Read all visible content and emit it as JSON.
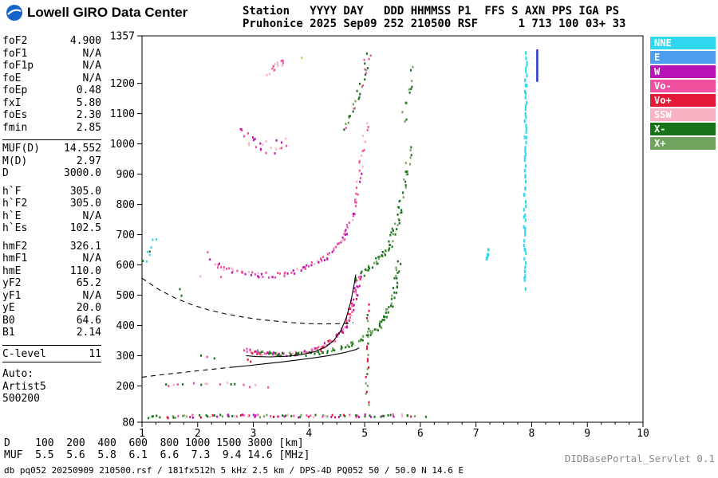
{
  "header": {
    "brand": "Lowell GIRO Data Center",
    "station_line1": "Station   YYYY DAY   DDD HHMMSS P1  FFS S AXN PPS IGA PS",
    "station_line2": "Pruhonice 2025 Sep09 252 210500 RSF      1 713 100 03+ 33"
  },
  "params": {
    "groups": [
      {
        "rule_top": false,
        "rule_bottom": false,
        "rows": [
          [
            "foF2",
            "4.900"
          ],
          [
            "foF1",
            "N/A"
          ],
          [
            "foF1p",
            "N/A"
          ],
          [
            "foE",
            "N/A"
          ],
          [
            "foEp",
            "0.48"
          ],
          [
            "fxI",
            "5.80"
          ],
          [
            "foEs",
            "2.30"
          ],
          [
            "fmin",
            "2.85"
          ]
        ]
      },
      {
        "rule_top": true,
        "rule_bottom": false,
        "rows": [
          [
            "MUF(D)",
            "14.552"
          ],
          [
            "M(D)",
            "2.97"
          ],
          [
            "D",
            "3000.0"
          ]
        ]
      },
      {
        "rule_top": false,
        "rule_bottom": false,
        "rows": [
          [
            "h`F",
            "305.0"
          ],
          [
            "h`F2",
            "305.0"
          ],
          [
            "h`E",
            "N/A"
          ],
          [
            "h`Es",
            "102.5"
          ]
        ]
      },
      {
        "rule_top": false,
        "rule_bottom": false,
        "rows": [
          [
            "hmF2",
            "326.1"
          ],
          [
            "hmF1",
            "N/A"
          ],
          [
            "hmE",
            "110.0"
          ],
          [
            "yF2",
            "65.2"
          ],
          [
            "yF1",
            "N/A"
          ],
          [
            "yE",
            "20.0"
          ],
          [
            "B0",
            "64.6"
          ],
          [
            "B1",
            "2.14"
          ]
        ]
      },
      {
        "rule_top": true,
        "rule_bottom": true,
        "rows": [
          [
            "C-level",
            "11"
          ]
        ]
      },
      {
        "rule_top": false,
        "rule_bottom": false,
        "rows": [
          [
            "Auto:",
            ""
          ],
          [
            "Artist5",
            ""
          ],
          [
            "500200",
            ""
          ]
        ]
      }
    ]
  },
  "legend": {
    "items": [
      {
        "label": "NNE",
        "color_key": "NNE"
      },
      {
        "label": "E",
        "color_key": "E"
      },
      {
        "label": "W",
        "color_key": "W"
      },
      {
        "label": "Vo-",
        "color_key": "Vo-"
      },
      {
        "label": "Vo+",
        "color_key": "Vo+"
      },
      {
        "label": "SSW",
        "color_key": "SSW"
      },
      {
        "label": "X-",
        "color_key": "X-"
      },
      {
        "label": "X+",
        "color_key": "X+"
      }
    ]
  },
  "footer": {
    "d_line": "D    100  200  400  600  800 1000 1500 3000 [km]",
    "muf_line": "MUF  5.5  5.6  5.8  6.1  6.6  7.3  9.4 14.6 [MHz]",
    "status_line": "db pq052 20250909 210500.rsf / 181fx512h 5 kHz 2.5 km / DPS-4D PQ052 50 / 50.0 N 14.6 E",
    "servlet": "DIDBasePortal_Servlet 0.1"
  },
  "chart_data": {
    "type": "scatter",
    "title": "Pruhonice ionogram 2025 Sep09 252 210500",
    "x_unit": "MHz",
    "y_unit": "km",
    "x_range": [
      1,
      10
    ],
    "y_range": [
      80,
      1357
    ],
    "x_major_ticks": [
      1,
      2,
      3,
      4,
      5,
      6,
      7,
      8,
      9,
      10
    ],
    "x_minor_step": 0.25,
    "y_ticks": [
      1357,
      1200,
      1100,
      1000,
      900,
      800,
      700,
      600,
      500,
      400,
      300,
      200,
      80
    ],
    "muf_table": {
      "D_km": [
        100,
        200,
        400,
        600,
        800,
        1000,
        1500,
        3000
      ],
      "MUF_MHz": [
        5.5,
        5.6,
        5.8,
        6.1,
        6.6,
        7.3,
        9.4,
        14.6
      ]
    },
    "colors": {
      "NNE": "#2fd8ee",
      "E": "#4d9ef0",
      "W": "#b912b9",
      "Vo-": "#ef4f9d",
      "Vo+": "#e41937",
      "SSW": "#f8b3c3",
      "X-": "#177317",
      "X+": "#6fa35e",
      "Y": "#c8c832"
    },
    "clusters": [
      {
        "name": "es-layer",
        "seed": 11,
        "n": 95,
        "jf": 0.05,
        "jh": 4.5,
        "colors": [
          "X-",
          "X-",
          "Vo-",
          "SSW",
          "Vo+",
          "X+",
          "W"
        ],
        "path": [
          [
            1.45,
            97
          ],
          [
            2.1,
            100
          ],
          [
            2.8,
            102
          ],
          [
            3.5,
            100
          ],
          [
            4.3,
            100
          ],
          [
            5.0,
            101
          ],
          [
            5.9,
            103
          ]
        ]
      },
      {
        "name": "es-second-hop",
        "seed": 12,
        "n": 16,
        "jf": 0.06,
        "jh": 7,
        "colors": [
          "X-",
          "Vo-",
          "SSW"
        ],
        "path": [
          [
            1.3,
            198
          ],
          [
            2.2,
            205
          ],
          [
            3.3,
            200
          ]
        ]
      },
      {
        "name": "f-trace-o",
        "seed": 13,
        "n": 130,
        "jf": 0.05,
        "jh": 6,
        "colors": [
          "W",
          "Vo-",
          "Vo-",
          "Vo+",
          "SSW"
        ],
        "path": [
          [
            2.87,
            318
          ],
          [
            3.1,
            307
          ],
          [
            3.5,
            303
          ],
          [
            3.9,
            308
          ],
          [
            4.2,
            322
          ],
          [
            4.45,
            350
          ],
          [
            4.62,
            392
          ],
          [
            4.75,
            445
          ],
          [
            4.85,
            515
          ],
          [
            4.9,
            565
          ]
        ]
      },
      {
        "name": "f-trace-x",
        "seed": 14,
        "n": 100,
        "jf": 0.05,
        "jh": 6,
        "colors": [
          "X-",
          "X-",
          "X+"
        ],
        "path": [
          [
            3.05,
            312
          ],
          [
            3.5,
            304
          ],
          [
            4.0,
            306
          ],
          [
            4.4,
            318
          ],
          [
            4.8,
            340
          ],
          [
            5.1,
            368
          ],
          [
            5.3,
            405
          ],
          [
            5.45,
            455
          ],
          [
            5.55,
            530
          ],
          [
            5.62,
            610
          ]
        ]
      },
      {
        "name": "f-second-hop-o",
        "seed": 15,
        "n": 115,
        "jf": 0.05,
        "jh": 9,
        "colors": [
          "W",
          "Vo-",
          "SSW",
          "Vo-"
        ],
        "path": [
          [
            2.3,
            602
          ],
          [
            2.6,
            580
          ],
          [
            3.0,
            567
          ],
          [
            3.4,
            566
          ],
          [
            3.8,
            580
          ],
          [
            4.1,
            600
          ],
          [
            4.35,
            630
          ],
          [
            4.55,
            668
          ],
          [
            4.72,
            727
          ],
          [
            4.85,
            815
          ],
          [
            4.95,
            935
          ],
          [
            5.02,
            1065
          ]
        ]
      },
      {
        "name": "f-second-hop-x",
        "seed": 16,
        "n": 70,
        "jf": 0.05,
        "jh": 11,
        "colors": [
          "X-",
          "X+",
          "X-"
        ],
        "path": [
          [
            4.85,
            560
          ],
          [
            5.1,
            588
          ],
          [
            5.3,
            622
          ],
          [
            5.45,
            668
          ],
          [
            5.55,
            725
          ],
          [
            5.65,
            795
          ],
          [
            5.75,
            885
          ],
          [
            5.83,
            985
          ]
        ]
      },
      {
        "name": "f-third-hop",
        "seed": 17,
        "n": 26,
        "jf": 0.06,
        "jh": 26,
        "colors": [
          "Vo-",
          "SSW",
          "W"
        ],
        "path": [
          [
            2.75,
            1045
          ],
          [
            3.0,
            1005
          ],
          [
            3.3,
            988
          ],
          [
            3.62,
            1002
          ]
        ]
      },
      {
        "name": "f-fourth-hop",
        "seed": 18,
        "n": 14,
        "jf": 0.04,
        "jh": 13,
        "colors": [
          "Vo-",
          "SSW"
        ],
        "path": [
          [
            3.25,
            1235
          ],
          [
            3.42,
            1256
          ],
          [
            3.58,
            1271
          ]
        ]
      },
      {
        "name": "second-hop-top",
        "seed": 19,
        "n": 30,
        "jf": 0.05,
        "jh": 14,
        "colors": [
          "X-",
          "X+",
          "Vo-"
        ],
        "path": [
          [
            4.62,
            1042
          ],
          [
            4.78,
            1102
          ],
          [
            4.9,
            1172
          ],
          [
            5.0,
            1242
          ],
          [
            5.08,
            1302
          ]
        ]
      },
      {
        "name": "second-hop-x-top",
        "seed": 25,
        "n": 12,
        "jf": 0.04,
        "jh": 20,
        "colors": [
          "X-",
          "X+"
        ],
        "path": [
          [
            5.68,
            1060
          ],
          [
            5.78,
            1160
          ],
          [
            5.85,
            1260
          ]
        ]
      },
      {
        "name": "spread-column-5mhz",
        "seed": 20,
        "n": 24,
        "jf": 0.03,
        "jh": 8,
        "colors": [
          "X-",
          "X+",
          "Vo+"
        ],
        "path": [
          [
            5.05,
            135
          ],
          [
            5.05,
            300
          ],
          [
            5.06,
            470
          ]
        ]
      },
      {
        "name": "rfi-7-2mhz",
        "seed": 21,
        "n": 7,
        "jf": 0.02,
        "jh": 6,
        "dh": 4,
        "colors": [
          "NNE"
        ],
        "path": [
          [
            7.2,
            612
          ],
          [
            7.21,
            655
          ]
        ]
      },
      {
        "name": "rfi-7-9mhz",
        "seed": 22,
        "n": 62,
        "jf": 0.02,
        "jh": 5,
        "dh": 4.5,
        "colors": [
          "NNE"
        ],
        "path": [
          [
            7.88,
            520
          ],
          [
            7.88,
            920
          ],
          [
            7.9,
            1305
          ]
        ]
      },
      {
        "name": "left-edge-noise",
        "seed": 23,
        "n": 8,
        "jf": 0.06,
        "jh": 14,
        "colors": [
          "NNE",
          "X-"
        ],
        "path": [
          [
            1.04,
            600
          ],
          [
            1.15,
            650
          ],
          [
            1.25,
            692
          ]
        ]
      },
      {
        "name": "left-bottom-noise",
        "seed": 24,
        "n": 5,
        "jf": 0.07,
        "jh": 4,
        "colors": [
          "X-"
        ],
        "path": [
          [
            1.05,
            95
          ],
          [
            1.35,
            100
          ]
        ]
      }
    ],
    "strays": [
      [
        1.68,
        520,
        "X-"
      ],
      [
        1.71,
        498,
        "X-"
      ],
      [
        2.18,
        642,
        "Vo-"
      ],
      [
        2.22,
        618,
        "W"
      ],
      [
        2.05,
        562,
        "SSW"
      ],
      [
        2.42,
        560,
        "Vo-"
      ],
      [
        2.06,
        300,
        "X-"
      ],
      [
        2.17,
        296,
        "Vo-"
      ],
      [
        2.3,
        291,
        "X-"
      ],
      [
        2.6,
        205,
        "X-"
      ],
      [
        2.9,
        287,
        "Vo+"
      ],
      [
        2.95,
        280,
        "Vo+"
      ],
      [
        3.87,
        1284,
        "Y"
      ],
      [
        5.9,
        100,
        "X+"
      ],
      [
        6.1,
        98,
        "X-"
      ]
    ],
    "curves": [
      {
        "name": "scaled-f-trace",
        "dash": false,
        "pts": [
          [
            2.87,
            300
          ],
          [
            3.05,
            297
          ],
          [
            3.3,
            296
          ],
          [
            3.6,
            298
          ],
          [
            3.85,
            303
          ],
          [
            4.1,
            313
          ],
          [
            4.3,
            329
          ],
          [
            4.45,
            351
          ],
          [
            4.57,
            382
          ],
          [
            4.67,
            425
          ],
          [
            4.75,
            478
          ],
          [
            4.81,
            535
          ],
          [
            4.84,
            568
          ]
        ]
      },
      {
        "name": "true-height-profile",
        "dash": false,
        "pts": [
          [
            2.62,
            262
          ],
          [
            2.9,
            267
          ],
          [
            3.2,
            273
          ],
          [
            3.5,
            279
          ],
          [
            3.8,
            286
          ],
          [
            4.1,
            293
          ],
          [
            4.35,
            300
          ],
          [
            4.55,
            307
          ],
          [
            4.72,
            314
          ],
          [
            4.84,
            320
          ],
          [
            4.9,
            326
          ]
        ]
      },
      {
        "name": "muf-transmission-curve",
        "dash": true,
        "pts": [
          [
            1.0,
            556
          ],
          [
            1.3,
            519
          ],
          [
            1.6,
            490
          ],
          [
            1.9,
            468
          ],
          [
            2.2,
            451
          ],
          [
            2.5,
            438
          ],
          [
            2.8,
            428
          ],
          [
            3.1,
            420
          ],
          [
            3.4,
            414
          ],
          [
            3.7,
            409
          ],
          [
            4.0,
            406
          ],
          [
            4.3,
            405
          ],
          [
            4.6,
            406
          ],
          [
            4.8,
            409
          ]
        ]
      },
      {
        "name": "profile-extrapolation",
        "dash": true,
        "pts": [
          [
            1.0,
            229
          ],
          [
            1.4,
            238
          ],
          [
            1.8,
            246
          ],
          [
            2.2,
            254
          ],
          [
            2.62,
            262
          ]
        ]
      }
    ],
    "rfi_lines": [
      {
        "f": 8.1,
        "h1": 1205,
        "h2": 1312,
        "color": "#2a35cf",
        "w": 2.5
      }
    ]
  }
}
